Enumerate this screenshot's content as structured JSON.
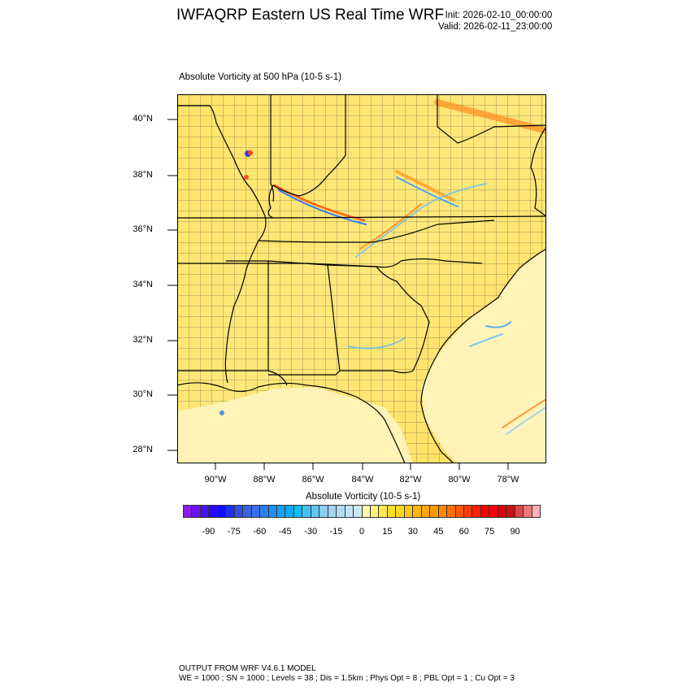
{
  "header": {
    "title": "IWFAQRP Eastern US Real Time WRF",
    "init": "Init: 2026-02-10_00:00:00",
    "valid": "Valid: 2026-02-11_23:00:00"
  },
  "chart_data": {
    "type": "heatmap",
    "title": "Absolute Vorticity at 500 hPa   (10-5 s-1)",
    "lat_ticks": [
      "40°N",
      "38°N",
      "36°N",
      "34°N",
      "32°N",
      "30°N",
      "28°N"
    ],
    "lon_ticks": [
      "90°W",
      "88°W",
      "86°W",
      "84°W",
      "82°W",
      "80°W",
      "78°W"
    ],
    "lat_range": [
      27.5,
      41
    ],
    "lon_range": [
      -91.5,
      -76.5
    ],
    "colorbar": {
      "title": "Absolute Vorticity  (10-5 s-1)",
      "range": [
        -105,
        105
      ],
      "step": 5,
      "labels": [
        "-90",
        "-75",
        "-60",
        "-45",
        "-30",
        "-15",
        "0",
        "15",
        "30",
        "45",
        "60",
        "75",
        "90"
      ],
      "colors": [
        "#8a1be8",
        "#6a14ee",
        "#4a10f5",
        "#2a08fa",
        "#1010fa",
        "#2030f0",
        "#3050e8",
        "#3a62dc",
        "#3a70e8",
        "#2a80f0",
        "#2090f8",
        "#18a0f8",
        "#10aaf5",
        "#10bcf8",
        "#40c4f0",
        "#60c8f0",
        "#88ccf0",
        "#a0d4f0",
        "#b0dcf4",
        "#c4e4f4",
        "#c8e8f6",
        "#fffab0",
        "#fff080",
        "#ffe850",
        "#ffe020",
        "#ffd820",
        "#ffc818",
        "#ffb810",
        "#ffa808",
        "#ff9800",
        "#ff8800",
        "#ff7000",
        "#ff5800",
        "#ff3c00",
        "#ff2000",
        "#ff0000",
        "#ee0010",
        "#dc0010",
        "#cc1010",
        "#d84848",
        "#ee7878",
        "#ffb0b0"
      ]
    }
  },
  "footer": {
    "line1": "OUTPUT FROM WRF V4.6.1 MODEL",
    "line2": "WE = 1000 ; SN = 1000 ; Levels = 38 ; Dis = 1.5km ; Phys Opt = 8 ; PBL Opt = 1 ; Cu Opt = 3"
  }
}
